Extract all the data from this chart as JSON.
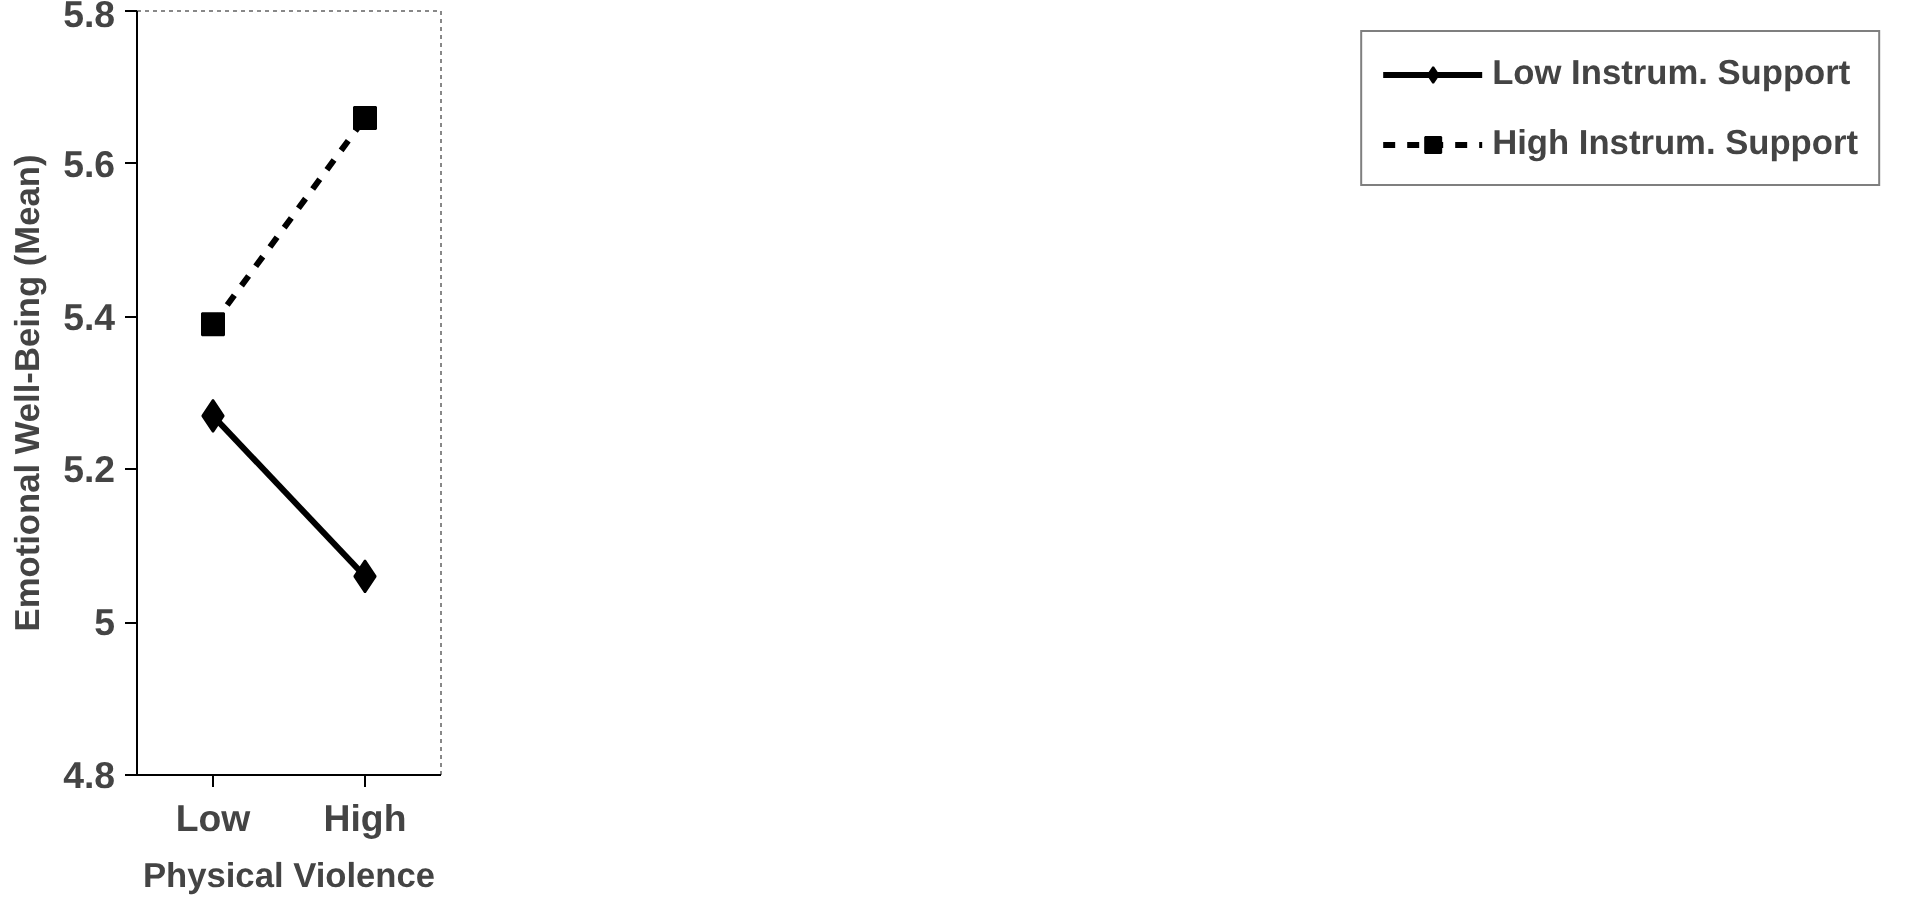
{
  "chart_data": {
    "type": "line",
    "xlabel": "Physical Violence",
    "ylabel": "Emotional Well-Being (Mean)",
    "categories": [
      "Low",
      "High"
    ],
    "series": [
      {
        "name": "Low Instrum. Support",
        "color": "#000000",
        "values": [
          5.27,
          5.06
        ],
        "marker": "diamond",
        "line_style": "solid"
      },
      {
        "name": "High Instrum. Support",
        "color": "#000000",
        "values": [
          5.39,
          5.66
        ],
        "marker": "square",
        "line_style": "dashed"
      }
    ],
    "ylim": [
      4.8,
      5.8
    ],
    "yticks": [
      4.8,
      5,
      5.2,
      5.4,
      5.6,
      5.8
    ],
    "grid": false,
    "legend": "right"
  }
}
